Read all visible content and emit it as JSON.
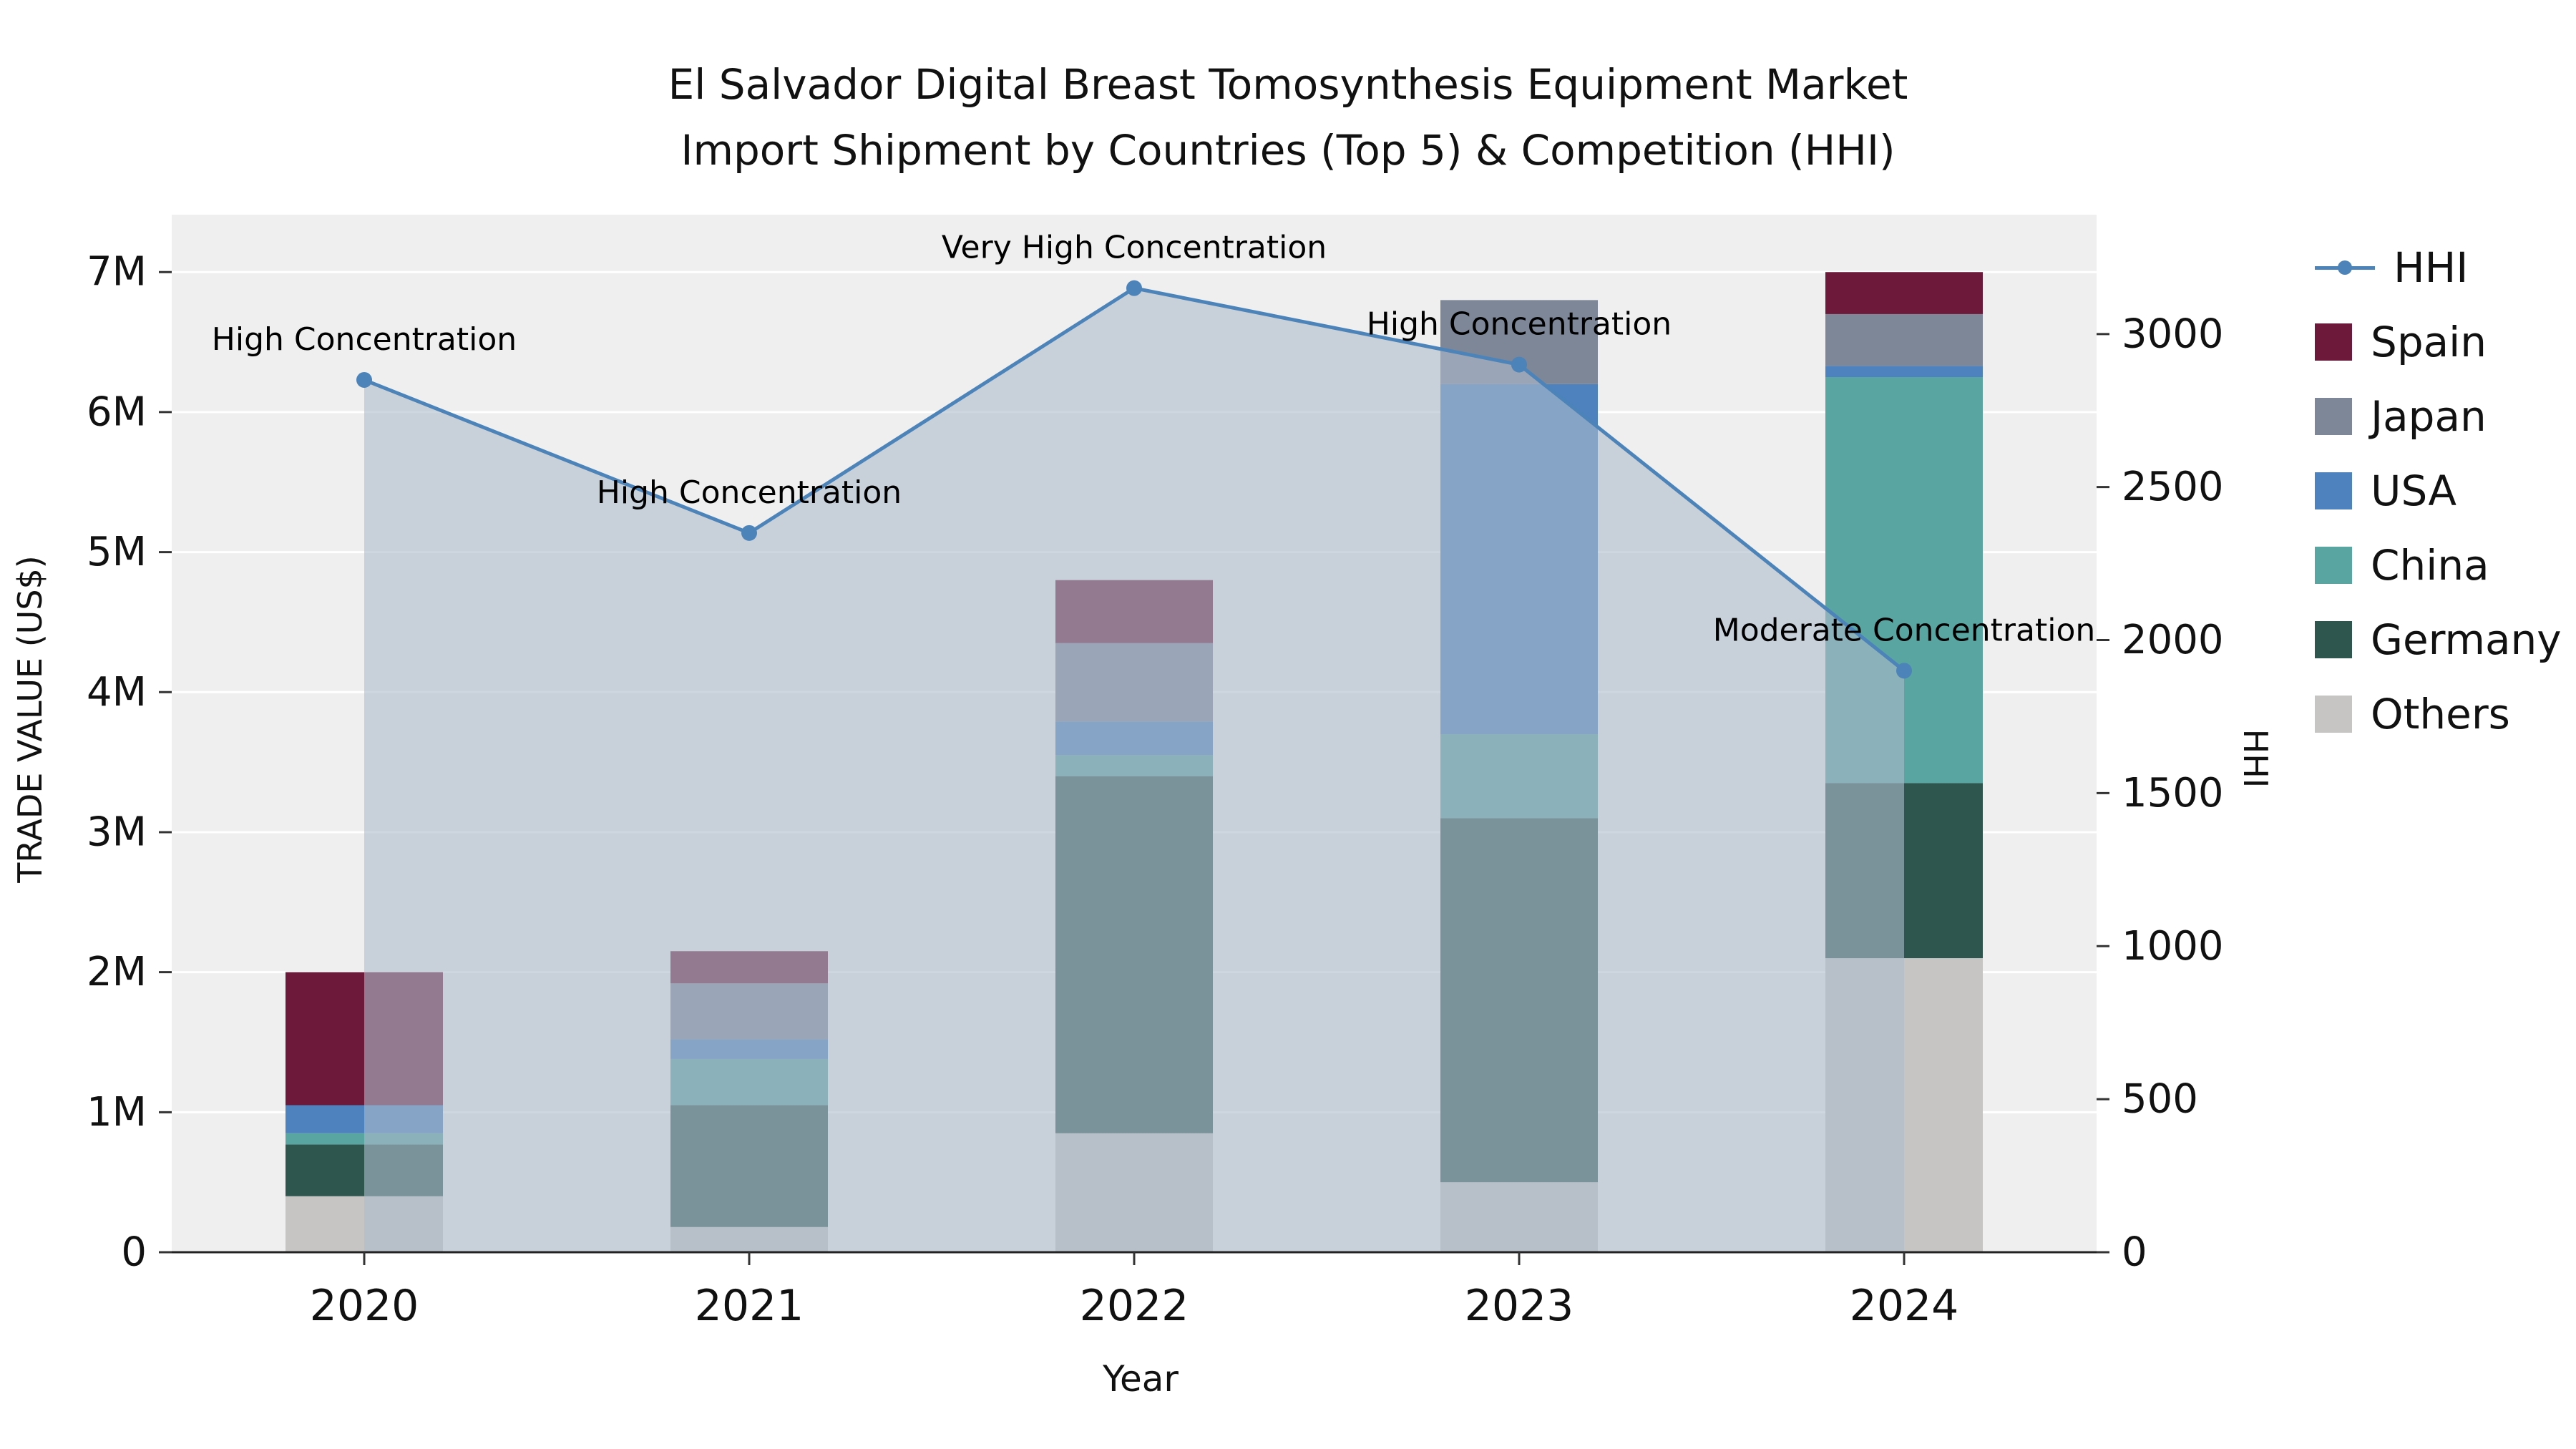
{
  "chart_data": {
    "type": "bar",
    "title": "El Salvador Digital Breast Tomosynthesis Equipment Market Import Shipment by Countries (Top 5) & Competition (HHI)",
    "title_lines": [
      "El Salvador Digital Breast Tomosynthesis Equipment Market",
      "Import Shipment by Countries (Top 5) & Competition (HHI)"
    ],
    "xlabel": "Year",
    "ylabel_left": "TRADE VALUE (US$)",
    "ylabel_right": "HHI",
    "categories": [
      "2020",
      "2021",
      "2022",
      "2023",
      "2024"
    ],
    "values_unit": "million US$",
    "stack_order_bottom_to_top": [
      "Others",
      "Germany",
      "China",
      "USA",
      "Japan",
      "Spain"
    ],
    "bar_series": [
      {
        "name": "Others",
        "color": "#c6c5c3",
        "values": [
          0.4,
          0.18,
          0.85,
          0.5,
          2.1
        ]
      },
      {
        "name": "Germany",
        "color": "#2e564e",
        "values": [
          0.37,
          0.87,
          2.55,
          2.6,
          1.25
        ]
      },
      {
        "name": "China",
        "color": "#58a5a2",
        "values": [
          0.08,
          0.33,
          0.15,
          0.6,
          2.9
        ]
      },
      {
        "name": "USA",
        "color": "#4d82be",
        "values": [
          0.2,
          0.14,
          0.24,
          2.5,
          0.08
        ]
      },
      {
        "name": "Japan",
        "color": "#7d8798",
        "values": [
          0.0,
          0.4,
          0.56,
          0.6,
          0.37
        ]
      },
      {
        "name": "Spain",
        "color": "#6d1a3a",
        "values": [
          0.95,
          0.23,
          0.45,
          0.0,
          0.3
        ]
      }
    ],
    "bar_totals": [
      2.0,
      2.15,
      4.8,
      6.8,
      7.0
    ],
    "line_series": {
      "name": "HHI",
      "color": "#4c83b8",
      "area_color": "#aebbcb",
      "area_opacity": 0.6,
      "values": [
        2850,
        2350,
        3150,
        2900,
        1900
      ]
    },
    "annotations": [
      "High Concentration",
      "High Concentration",
      "Very High Concentration",
      "High Concentration",
      "Moderate Concentration"
    ],
    "left_axis": {
      "ticks": [
        "0",
        "1M",
        "2M",
        "3M",
        "4M",
        "5M",
        "6M",
        "7M"
      ],
      "values": [
        0,
        1,
        2,
        3,
        4,
        5,
        6,
        7
      ],
      "max": 7.41
    },
    "right_axis": {
      "ticks": [
        "0",
        "500",
        "1000",
        "1500",
        "2000",
        "2500",
        "3000"
      ],
      "values": [
        0,
        500,
        1000,
        1500,
        2000,
        2500,
        3000
      ],
      "max": 3390
    },
    "legend": [
      "HHI",
      "Spain",
      "Japan",
      "USA",
      "China",
      "Germany",
      "Others"
    ],
    "plot_background": "#efefef",
    "grid": "on",
    "legend_position": "right"
  }
}
